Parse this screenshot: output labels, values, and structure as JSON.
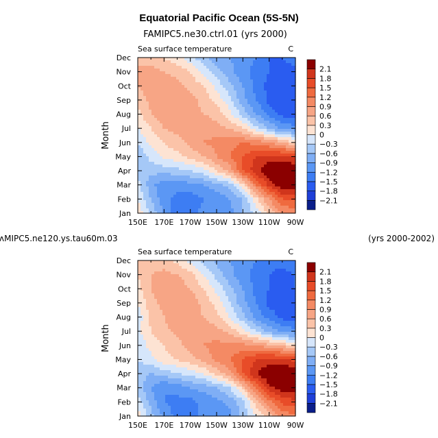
{
  "figure": {
    "title": "Equatorial Pacific Ocean (5S-5N)",
    "panel1_subtitle": "FAMIPC5.ne30.ctrl.01 (yrs 2000)",
    "panel2_subtitle_left": "ʌMIPC5.ne120.ys.tau60m.03",
    "panel2_subtitle_right": "(yrs 2000-2002)"
  },
  "colors": {
    "levels": [
      "#0a1e8a",
      "#1e3fd8",
      "#2a5cf0",
      "#3d7df3",
      "#5b97f4",
      "#7faef5",
      "#a5c8f7",
      "#d6e6fb",
      "#fde3d3",
      "#fbc3a8",
      "#f7a585",
      "#f48a64",
      "#ef6a3f",
      "#e84c28",
      "#d0351c",
      "#8b0000"
    ]
  },
  "chart_data": [
    {
      "type": "heatmap",
      "panel": 1,
      "title": "Sea surface temperature",
      "units": "C",
      "ylabel": "Month",
      "xlabel": "",
      "x": [
        150,
        160,
        170,
        180,
        190,
        200,
        210,
        220,
        230,
        240,
        250,
        260,
        270
      ],
      "xticks": [
        "150E",
        "170E",
        "170W",
        "150W",
        "130W",
        "110W",
        "90W"
      ],
      "yticks": [
        "Jan",
        "Feb",
        "Mar",
        "Apr",
        "May",
        "Jun",
        "Jul",
        "Aug",
        "Sep",
        "Oct",
        "Nov",
        "Dec"
      ],
      "levels": [
        -2.1,
        -1.8,
        -1.5,
        -1.2,
        -0.9,
        -0.6,
        -0.3,
        0,
        0.3,
        0.6,
        0.9,
        1.2,
        1.5,
        1.8,
        2.1
      ],
      "values": [
        [
          0.2,
          -0.4,
          -0.9,
          -1.4,
          -1.3,
          -1.1,
          -1.2,
          -1.0,
          -0.6,
          -0.2,
          0.4,
          0.9,
          1.0
        ],
        [
          0.0,
          -0.6,
          -1.1,
          -1.3,
          -1.4,
          -1.2,
          -1.1,
          -0.9,
          -0.6,
          0.2,
          0.9,
          1.5,
          1.6
        ],
        [
          -0.2,
          -0.8,
          -1.1,
          -1.1,
          -1.0,
          -0.9,
          -0.7,
          -0.5,
          0.2,
          1.2,
          1.9,
          2.3,
          2.3
        ],
        [
          -0.4,
          -0.5,
          -0.5,
          -0.4,
          -0.3,
          -0.1,
          0.3,
          0.7,
          1.5,
          2.0,
          2.4,
          2.5,
          2.4
        ],
        [
          -0.6,
          -0.2,
          0.1,
          0.2,
          0.4,
          0.6,
          0.9,
          1.2,
          1.5,
          1.8,
          1.9,
          1.9,
          1.8
        ],
        [
          -0.3,
          0.1,
          0.3,
          0.5,
          0.7,
          0.9,
          1.0,
          1.1,
          1.2,
          1.1,
          0.9,
          0.6,
          0.3
        ],
        [
          0.0,
          0.3,
          0.6,
          0.7,
          0.7,
          0.8,
          0.7,
          0.6,
          0.3,
          -0.2,
          -0.6,
          -1.0,
          -1.1
        ],
        [
          0.2,
          0.6,
          0.8,
          0.7,
          0.7,
          0.6,
          0.5,
          0.1,
          -0.4,
          -0.9,
          -1.3,
          -1.6,
          -1.6
        ],
        [
          0.4,
          0.7,
          0.9,
          0.8,
          0.7,
          0.5,
          0.2,
          -0.2,
          -0.8,
          -1.2,
          -1.6,
          -1.8,
          -1.8
        ],
        [
          0.6,
          0.8,
          0.8,
          0.7,
          0.5,
          0.3,
          -0.1,
          -0.5,
          -0.9,
          -1.3,
          -1.6,
          -1.7,
          -1.7
        ],
        [
          0.7,
          0.7,
          0.6,
          0.5,
          0.3,
          -0.1,
          -0.5,
          -0.8,
          -1.1,
          -1.3,
          -1.5,
          -1.7,
          -1.6
        ],
        [
          0.5,
          0.5,
          0.3,
          0.1,
          -0.2,
          -0.5,
          -0.8,
          -0.9,
          -1.0,
          -1.2,
          -1.5,
          -1.5,
          -1.3
        ]
      ]
    },
    {
      "type": "heatmap",
      "panel": 2,
      "title": "Sea surface temperature",
      "units": "C",
      "ylabel": "Month",
      "xlabel": "",
      "x": [
        150,
        160,
        170,
        180,
        190,
        200,
        210,
        220,
        230,
        240,
        250,
        260,
        270
      ],
      "xticks": [
        "150E",
        "170E",
        "170W",
        "150W",
        "130W",
        "110W",
        "90W"
      ],
      "yticks": [
        "Jan",
        "Feb",
        "Mar",
        "Apr",
        "May",
        "Jun",
        "Jul",
        "Aug",
        "Sep",
        "Oct",
        "Nov",
        "Dec"
      ],
      "levels": [
        -2.1,
        -1.8,
        -1.5,
        -1.2,
        -0.9,
        -0.6,
        -0.3,
        0,
        0.3,
        0.6,
        0.9,
        1.2,
        1.5,
        1.8,
        2.1
      ],
      "values": [
        [
          0.2,
          -0.5,
          -1.0,
          -1.3,
          -1.3,
          -1.1,
          -1.1,
          -1.0,
          -0.5,
          0.0,
          0.5,
          1.0,
          1.1
        ],
        [
          -0.2,
          -0.7,
          -1.2,
          -1.3,
          -1.3,
          -1.1,
          -1.0,
          -0.8,
          -0.4,
          0.4,
          1.1,
          1.6,
          1.7
        ],
        [
          -0.4,
          -0.9,
          -1.2,
          -1.1,
          -0.9,
          -0.8,
          -0.6,
          -0.3,
          0.4,
          1.3,
          2.0,
          2.3,
          2.3
        ],
        [
          -0.5,
          -0.6,
          -0.5,
          -0.3,
          -0.2,
          0.0,
          0.4,
          0.8,
          1.5,
          2.1,
          2.4,
          2.5,
          2.4
        ],
        [
          -0.3,
          -0.1,
          0.2,
          0.3,
          0.5,
          0.7,
          1.0,
          1.2,
          1.5,
          1.8,
          1.9,
          1.9,
          1.7
        ],
        [
          -0.2,
          0.1,
          0.3,
          0.5,
          0.7,
          0.9,
          1.0,
          1.0,
          1.0,
          0.9,
          0.7,
          0.5,
          0.2
        ],
        [
          -0.1,
          0.3,
          0.5,
          0.7,
          0.8,
          0.8,
          0.7,
          0.5,
          0.1,
          -0.3,
          -0.7,
          -1.0,
          -1.1
        ],
        [
          -0.2,
          0.4,
          0.6,
          0.8,
          0.8,
          0.6,
          0.4,
          0.0,
          -0.5,
          -1.0,
          -1.3,
          -1.6,
          -1.6
        ],
        [
          0.0,
          0.5,
          0.7,
          0.9,
          0.8,
          0.5,
          0.2,
          -0.3,
          -0.8,
          -1.2,
          -1.6,
          -1.7,
          -1.6
        ],
        [
          0.2,
          0.6,
          0.8,
          0.8,
          0.6,
          0.3,
          -0.1,
          -0.5,
          -0.9,
          -1.3,
          -1.5,
          -1.6,
          -1.5
        ],
        [
          0.3,
          0.6,
          0.7,
          0.6,
          0.4,
          0.0,
          -0.4,
          -0.8,
          -1.1,
          -1.3,
          -1.5,
          -1.6,
          -1.5
        ],
        [
          0.3,
          0.4,
          0.4,
          0.2,
          -0.1,
          -0.4,
          -0.7,
          -0.9,
          -1.0,
          -1.2,
          -1.4,
          -1.4,
          -1.2
        ]
      ]
    }
  ]
}
